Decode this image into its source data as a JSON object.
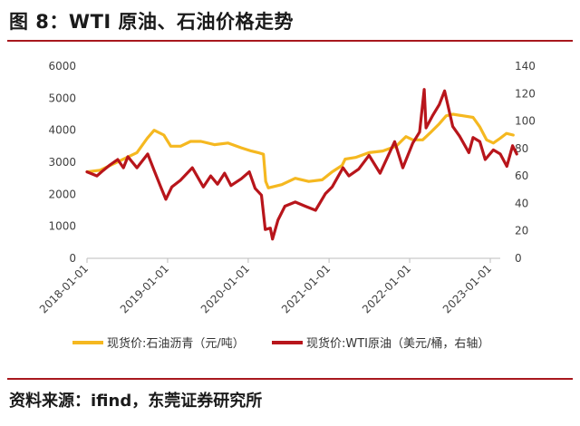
{
  "header": {
    "title": "图 8：WTI 原油、石油价格走势"
  },
  "footer": {
    "source": "资料来源：ifind，东莞证券研究所"
  },
  "colors": {
    "asphalt": "#f5b820",
    "wti": "#b8151b",
    "rule": "#a8181e"
  },
  "chart_data": {
    "type": "line",
    "title": "",
    "x_ticks": [
      "2018-01-01",
      "2019-01-01",
      "2020-01-01",
      "2021-01-01",
      "2022-01-01",
      "2023-01-01"
    ],
    "y_left_ticks": [
      "0",
      "1000",
      "2000",
      "3000",
      "4000",
      "5000",
      "6000"
    ],
    "y_right_ticks": [
      "0",
      "20",
      "40",
      "60",
      "80",
      "100",
      "120",
      "140"
    ],
    "ylim_left": [
      0,
      6000
    ],
    "ylim_right": [
      0,
      140
    ],
    "grid": false,
    "legend_position": "bottom",
    "series": [
      {
        "name": "现货价:石油沥青（元/吨）",
        "axis": "left",
        "color": "#f5b820",
        "points": [
          [
            "2018-01-01",
            2700
          ],
          [
            "2018-03-01",
            2750
          ],
          [
            "2018-05-01",
            2950
          ],
          [
            "2018-07-01",
            3150
          ],
          [
            "2018-08-15",
            3300
          ],
          [
            "2018-10-01",
            3750
          ],
          [
            "2018-11-01",
            4000
          ],
          [
            "2018-12-15",
            3850
          ],
          [
            "2019-01-15",
            3500
          ],
          [
            "2019-03-01",
            3500
          ],
          [
            "2019-04-15",
            3650
          ],
          [
            "2019-06-01",
            3650
          ],
          [
            "2019-08-01",
            3550
          ],
          [
            "2019-10-01",
            3600
          ],
          [
            "2019-12-01",
            3450
          ],
          [
            "2020-01-15",
            3350
          ],
          [
            "2020-02-15",
            3300
          ],
          [
            "2020-03-10",
            3250
          ],
          [
            "2020-03-20",
            2400
          ],
          [
            "2020-04-01",
            2200
          ],
          [
            "2020-06-01",
            2300
          ],
          [
            "2020-08-01",
            2500
          ],
          [
            "2020-10-01",
            2400
          ],
          [
            "2020-12-01",
            2450
          ],
          [
            "2021-01-15",
            2700
          ],
          [
            "2021-03-01",
            2900
          ],
          [
            "2021-03-15",
            3100
          ],
          [
            "2021-05-01",
            3150
          ],
          [
            "2021-07-01",
            3300
          ],
          [
            "2021-09-01",
            3350
          ],
          [
            "2021-11-01",
            3500
          ],
          [
            "2021-12-15",
            3800
          ],
          [
            "2022-01-15",
            3700
          ],
          [
            "2022-03-01",
            3700
          ],
          [
            "2022-04-01",
            3900
          ],
          [
            "2022-05-15",
            4200
          ],
          [
            "2022-06-15",
            4450
          ],
          [
            "2022-07-15",
            4500
          ],
          [
            "2022-09-01",
            4450
          ],
          [
            "2022-10-15",
            4400
          ],
          [
            "2022-11-15",
            4100
          ],
          [
            "2022-12-15",
            3700
          ],
          [
            "2023-01-15",
            3600
          ],
          [
            "2023-02-15",
            3750
          ],
          [
            "2023-03-15",
            3900
          ],
          [
            "2023-04-15",
            3850
          ]
        ]
      },
      {
        "name": "现货价:WTI原油（美元/桶，右轴）",
        "axis": "right",
        "color": "#b8151b",
        "points": [
          [
            "2018-01-01",
            63
          ],
          [
            "2018-02-15",
            60
          ],
          [
            "2018-03-15",
            64
          ],
          [
            "2018-04-15",
            68
          ],
          [
            "2018-05-20",
            72
          ],
          [
            "2018-06-15",
            66
          ],
          [
            "2018-07-05",
            74
          ],
          [
            "2018-08-15",
            66
          ],
          [
            "2018-10-03",
            76
          ],
          [
            "2018-11-01",
            64
          ],
          [
            "2018-12-01",
            52
          ],
          [
            "2018-12-24",
            43
          ],
          [
            "2019-01-20",
            52
          ],
          [
            "2019-03-01",
            57
          ],
          [
            "2019-04-23",
            66
          ],
          [
            "2019-06-12",
            52
          ],
          [
            "2019-07-15",
            60
          ],
          [
            "2019-08-15",
            54
          ],
          [
            "2019-09-16",
            62
          ],
          [
            "2019-10-15",
            53
          ],
          [
            "2019-12-01",
            58
          ],
          [
            "2020-01-06",
            63
          ],
          [
            "2020-02-01",
            51
          ],
          [
            "2020-03-01",
            46
          ],
          [
            "2020-03-18",
            21
          ],
          [
            "2020-04-10",
            22
          ],
          [
            "2020-04-20",
            14
          ],
          [
            "2020-05-15",
            28
          ],
          [
            "2020-06-15",
            38
          ],
          [
            "2020-08-01",
            41
          ],
          [
            "2020-09-15",
            38
          ],
          [
            "2020-11-01",
            35
          ],
          [
            "2020-12-15",
            47
          ],
          [
            "2021-01-15",
            52
          ],
          [
            "2021-03-05",
            66
          ],
          [
            "2021-04-01",
            60
          ],
          [
            "2021-05-15",
            65
          ],
          [
            "2021-07-01",
            75
          ],
          [
            "2021-08-20",
            62
          ],
          [
            "2021-10-25",
            85
          ],
          [
            "2021-12-01",
            66
          ],
          [
            "2022-01-15",
            84
          ],
          [
            "2022-02-15",
            92
          ],
          [
            "2022-03-08",
            123
          ],
          [
            "2022-03-16",
            95
          ],
          [
            "2022-04-15",
            104
          ],
          [
            "2022-05-15",
            112
          ],
          [
            "2022-06-08",
            122
          ],
          [
            "2022-07-15",
            96
          ],
          [
            "2022-08-15",
            89
          ],
          [
            "2022-09-26",
            77
          ],
          [
            "2022-10-15",
            88
          ],
          [
            "2022-11-15",
            85
          ],
          [
            "2022-12-09",
            72
          ],
          [
            "2023-01-15",
            79
          ],
          [
            "2023-02-15",
            76
          ],
          [
            "2023-03-17",
            67
          ],
          [
            "2023-04-12",
            82
          ],
          [
            "2023-05-01",
            76
          ]
        ]
      }
    ]
  }
}
